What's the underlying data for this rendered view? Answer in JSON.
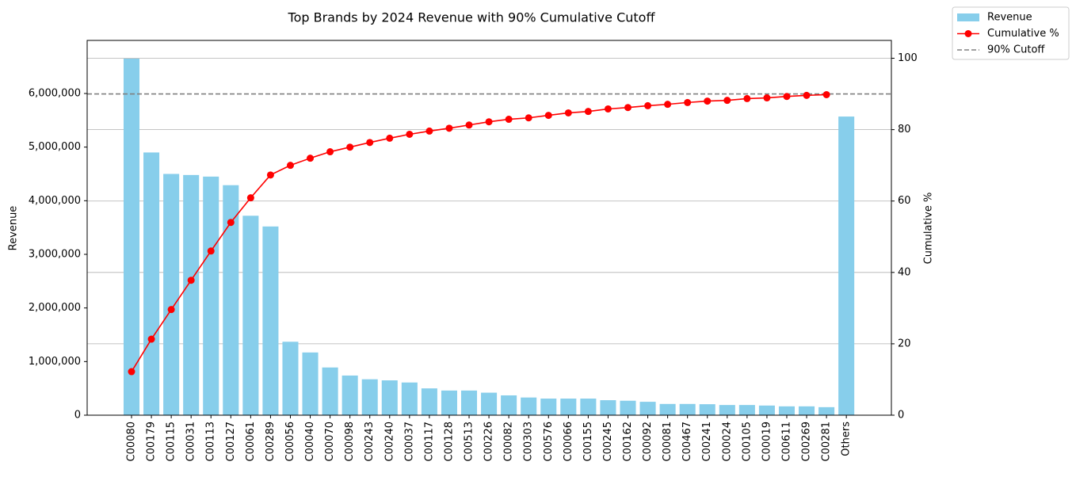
{
  "chart_data": {
    "type": "bar_line",
    "title": "Top Brands by 2024 Revenue with 90% Cumulative Cutoff",
    "y_label": "Revenue",
    "y2_label": "Cumulative %",
    "categories": [
      "C00080",
      "C00179",
      "C00115",
      "C00031",
      "C00113",
      "C00127",
      "C00061",
      "C00289",
      "C00056",
      "C00040",
      "C00070",
      "C00098",
      "C00243",
      "C00240",
      "C00037",
      "C00117",
      "C00128",
      "C00513",
      "C00226",
      "C00082",
      "C00303",
      "C00576",
      "C00066",
      "C00155",
      "C00245",
      "C00162",
      "C00092",
      "C00081",
      "C00467",
      "C00241",
      "C00024",
      "C00105",
      "C00019",
      "C00611",
      "C00269",
      "C00281",
      "Others"
    ],
    "series": [
      {
        "name": "Revenue",
        "type": "bar",
        "color": "#87ceeb",
        "axis": "y",
        "values": [
          6650000,
          4900000,
          4500000,
          4480000,
          4450000,
          4290000,
          3720000,
          3520000,
          1370000,
          1170000,
          890000,
          740000,
          670000,
          650000,
          610000,
          500000,
          460000,
          460000,
          420000,
          370000,
          330000,
          310000,
          310000,
          310000,
          280000,
          270000,
          250000,
          210000,
          210000,
          205000,
          190000,
          190000,
          180000,
          165000,
          165000,
          150000,
          5570000
        ]
      },
      {
        "name": "Cumulative %",
        "type": "line",
        "color": "#ff0000",
        "axis": "y2",
        "values": [
          12.2,
          21.3,
          29.6,
          37.8,
          46.0,
          54.0,
          60.9,
          67.3,
          70.0,
          72.0,
          73.8,
          75.1,
          76.4,
          77.6,
          78.7,
          79.6,
          80.4,
          81.3,
          82.2,
          82.9,
          83.3,
          84.0,
          84.7,
          85.1,
          85.8,
          86.2,
          86.7,
          87.1,
          87.6,
          88.0,
          88.2,
          88.7,
          88.9,
          89.3,
          89.6,
          89.8,
          null
        ]
      }
    ],
    "cutoff": {
      "name": "90% Cutoff",
      "value": 90,
      "color": "#808080",
      "axis": "y2"
    },
    "ylim": [
      0,
      6990000
    ],
    "yticks": [
      0,
      {
        "value": 1000000,
        "label": "1,000,000"
      },
      {
        "value": 2000000,
        "label": "2,000,000"
      },
      {
        "value": 3000000,
        "label": "3,000,000"
      },
      {
        "value": 4000000,
        "label": "4,000,000"
      },
      {
        "value": 5000000,
        "label": "5,000,000"
      },
      {
        "value": 6000000,
        "label": "6,000,000"
      }
    ],
    "y2lim": [
      0,
      105
    ],
    "y2ticks": [
      0,
      20,
      40,
      60,
      80,
      100
    ],
    "grid": "y2",
    "legend": "outside-top-right"
  }
}
